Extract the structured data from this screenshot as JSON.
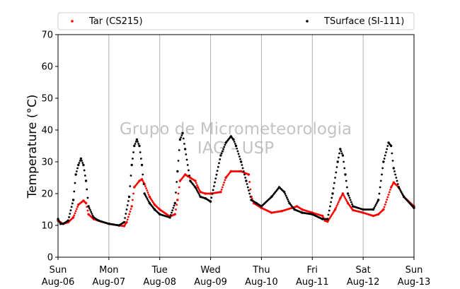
{
  "chart_data": {
    "type": "scatter",
    "ylabel": "Temperature (°C)",
    "ylim": [
      0,
      70
    ],
    "yticks": [
      0,
      10,
      20,
      30,
      40,
      50,
      60,
      70
    ],
    "x_unit": "days",
    "xlim": [
      "Aug-06",
      "Aug-13"
    ],
    "xticks": [
      {
        "day": "Sun",
        "date": "Aug-06"
      },
      {
        "day": "Mon",
        "date": "Aug-07"
      },
      {
        "day": "Tue",
        "date": "Aug-08"
      },
      {
        "day": "Wed",
        "date": "Aug-09"
      },
      {
        "day": "Thu",
        "date": "Aug-10"
      },
      {
        "day": "Fri",
        "date": "Aug-11"
      },
      {
        "day": "Sat",
        "date": "Aug-12"
      },
      {
        "day": "Sun",
        "date": "Aug-13"
      }
    ],
    "grid": "vertical",
    "legend_position": "top",
    "watermark": [
      "Grupo de Micrometeorologia",
      "IAG - USP"
    ],
    "series": [
      {
        "name": "Tar (CS215)",
        "color": "#ff0000",
        "x": [
          0.0,
          0.1,
          0.2,
          0.3,
          0.4,
          0.5,
          0.55,
          0.6,
          0.7,
          0.85,
          1.0,
          1.2,
          1.3,
          1.35,
          1.45,
          1.5,
          1.6,
          1.65,
          1.7,
          1.8,
          1.9,
          2.0,
          2.2,
          2.3,
          2.35,
          2.4,
          2.5,
          2.55,
          2.6,
          2.7,
          2.75,
          2.8,
          2.9,
          3.0,
          3.2,
          3.3,
          3.4,
          3.6,
          3.75,
          3.8,
          3.85,
          4.0,
          4.2,
          4.4,
          4.6,
          4.7,
          4.8,
          5.0,
          5.2,
          5.25,
          5.3,
          5.45,
          5.55,
          5.6,
          5.7,
          5.8,
          6.0,
          6.2,
          6.3,
          6.4,
          6.55,
          6.6,
          6.7,
          6.8,
          7.0
        ],
        "y": [
          11.5,
          10.5,
          11,
          12.5,
          16.5,
          17.8,
          17,
          13.5,
          12,
          11.2,
          10.5,
          10,
          9.8,
          11,
          16,
          22,
          24,
          24.5,
          23,
          19,
          16.5,
          15,
          12.8,
          13.5,
          18,
          24,
          26,
          25.5,
          25,
          24,
          22,
          20.5,
          20,
          20,
          20.5,
          25,
          27,
          27,
          26,
          19,
          17,
          15.5,
          14,
          14.5,
          15.5,
          16,
          15,
          14,
          13,
          11.5,
          11.2,
          15,
          18.5,
          20,
          17,
          14.8,
          14,
          13,
          13.5,
          15,
          22,
          23.5,
          22,
          19,
          16
        ]
      },
      {
        "name": "TSurface (SI-111)",
        "color": "#000000",
        "x": [
          0.0,
          0.05,
          0.1,
          0.2,
          0.3,
          0.35,
          0.4,
          0.45,
          0.5,
          0.55,
          0.6,
          0.7,
          0.8,
          1.0,
          1.2,
          1.3,
          1.4,
          1.45,
          1.5,
          1.55,
          1.6,
          1.65,
          1.7,
          1.8,
          1.9,
          2.0,
          2.2,
          2.3,
          2.35,
          2.4,
          2.45,
          2.5,
          2.6,
          2.7,
          2.8,
          2.9,
          3.0,
          3.2,
          3.3,
          3.4,
          3.45,
          3.5,
          3.6,
          3.7,
          3.8,
          3.9,
          4.0,
          4.2,
          4.35,
          4.45,
          4.55,
          4.65,
          4.8,
          5.0,
          5.2,
          5.3,
          5.4,
          5.5,
          5.55,
          5.6,
          5.65,
          5.7,
          5.8,
          6.0,
          6.2,
          6.3,
          6.4,
          6.5,
          6.55,
          6.6,
          6.7,
          6.8,
          7.0
        ],
        "y": [
          12,
          10.5,
          10.5,
          11.5,
          18,
          26,
          29,
          31,
          29,
          24,
          16,
          12.5,
          11.5,
          10.5,
          10,
          11,
          19,
          29,
          35,
          37,
          35,
          29,
          20,
          17,
          15,
          13.5,
          12.5,
          17,
          27,
          37,
          39,
          34,
          24,
          22,
          19,
          18.5,
          17.5,
          32,
          36,
          38,
          37,
          35,
          30,
          24,
          18,
          17,
          16,
          19,
          22,
          20.5,
          17,
          15,
          14,
          13.5,
          12,
          12,
          20,
          30,
          34,
          32,
          26,
          20,
          16,
          15,
          15,
          18,
          30,
          36,
          35,
          28,
          22,
          19,
          15.5
        ]
      }
    ]
  }
}
